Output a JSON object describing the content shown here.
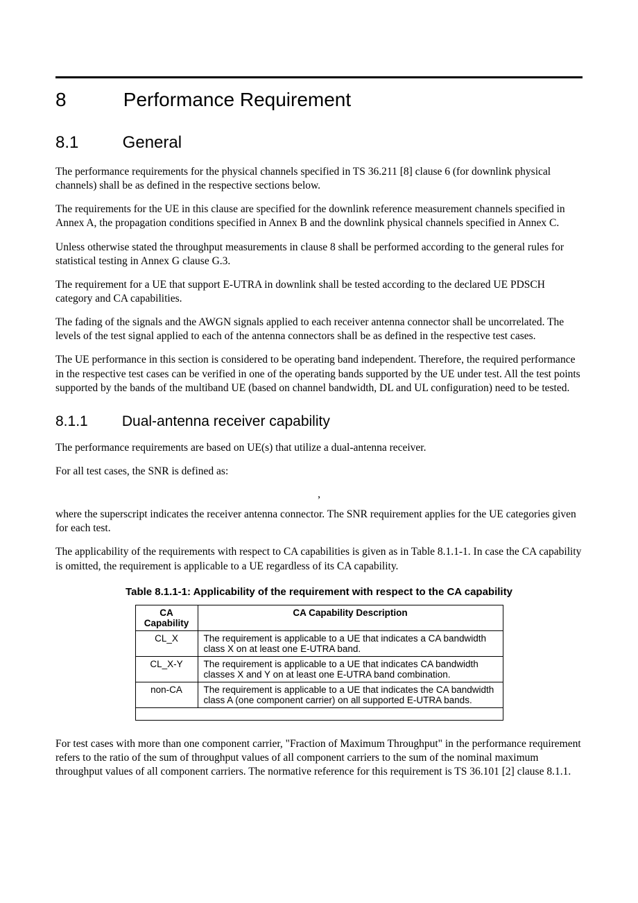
{
  "section": {
    "number": "8",
    "title": "Performance Requirement"
  },
  "subsection1": {
    "number": "8.1",
    "title": "General",
    "paragraphs": [
      "The performance requirements for the physical channels specified in TS 36.211 [8] clause 6 (for downlink physical channels) shall be as defined in the respective sections below.",
      "The requirements for the UE in this clause are specified for the downlink reference measurement channels specified in Annex A, the propagation conditions specified in Annex B and the downlink physical channels specified in Annex C.",
      "Unless otherwise stated the throughput measurements in clause 8 shall be performed according to the general rules for statistical testing in Annex G clause G.3.",
      "The requirement for a UE that support E-UTRA in downlink shall be tested according to the declared UE PDSCH category and CA capabilities.",
      "The fading of the signals and the AWGN signals applied to each receiver antenna connector shall be uncorrelated. The levels of the test signal applied to each of the antenna connectors shall be as defined in the respective test cases.",
      "The UE performance in this section is considered to be operating band independent. Therefore, the required performance in the respective test cases can be verified in one of the operating bands supported by the UE under test. All the test points supported by the bands of the multiband UE (based on channel bandwidth, DL and UL configuration) need to be tested."
    ]
  },
  "subsection2": {
    "number": "8.1.1",
    "title": "Dual-antenna receiver capability",
    "paragraphs_before": [
      "The performance requirements are based on UE(s) that utilize a dual-antenna receiver.",
      "For all test cases, the SNR is defined as:"
    ],
    "comma": ",",
    "paragraphs_mid": [
      "where the superscript indicates the receiver antenna connector. The SNR requirement applies for the UE categories given for each test.",
      "The applicability of the requirements with respect to CA capabilities is given as in Table 8.1.1-1. In case the CA capability is omitted, the requirement is applicable to a UE regardless of its CA capability."
    ],
    "table": {
      "caption": "Table 8.1.1-1: Applicability of the requirement with respect to the CA capability",
      "headers": [
        "CA Capability",
        "CA Capability Description"
      ],
      "rows": [
        [
          "CL_X",
          "The requirement is applicable to a UE that indicates a CA bandwidth class X on at least one E-UTRA band."
        ],
        [
          "CL_X-Y",
          "The requirement is applicable to a UE that indicates CA bandwidth classes X and Y on at least one E-UTRA band combination."
        ],
        [
          "non-CA",
          "The requirement is applicable to a UE that indicates the CA bandwidth class A (one component carrier) on all supported E-UTRA bands."
        ]
      ]
    },
    "paragraphs_after": [
      "For test cases with more than one component carrier, \"Fraction of Maximum Throughput\" in the performance requirement refers to the ratio of the sum of throughput values of all component carriers to the sum of the nominal maximum throughput values of all component carriers. The normative reference for this requirement is TS 36.101 [2] clause 8.1.1."
    ]
  }
}
